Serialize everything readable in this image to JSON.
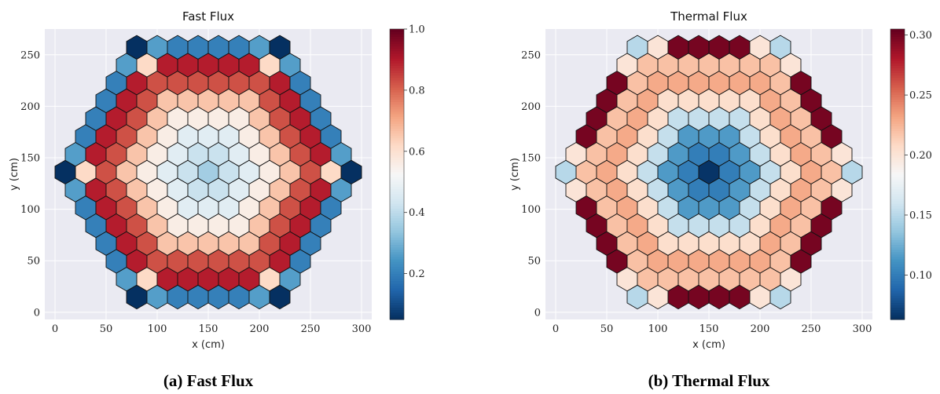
{
  "colors": {
    "colormap": [
      "#053061",
      "#2166ac",
      "#4393c3",
      "#92c5de",
      "#d1e5f0",
      "#f7f7f7",
      "#fddbc7",
      "#f4a582",
      "#d6604d",
      "#b2182b",
      "#67001f"
    ],
    "plot_background": "#eaeaf2",
    "hex_edge": "#111111"
  },
  "chart_data": [
    {
      "type": "heatmap",
      "subtype": "hexagonal-lattice",
      "title": "Fast Flux",
      "caption": "(a) Fast Flux",
      "xlabel": "x (cm)",
      "ylabel": "y (cm)",
      "xlim": [
        -10,
        310
      ],
      "ylim": [
        -7,
        275
      ],
      "xticks": [
        0,
        50,
        100,
        150,
        200,
        250,
        300
      ],
      "yticks": [
        0,
        50,
        100,
        150,
        200,
        250
      ],
      "xtick_labels": [
        "0",
        "50",
        "100",
        "150",
        "200",
        "250",
        "300"
      ],
      "ytick_labels": [
        "0",
        "50",
        "100",
        "150",
        "200",
        "250"
      ],
      "grid": true,
      "colorbar": {
        "min": 0.05,
        "max": 1.0,
        "ticks": [
          0.2,
          0.4,
          0.6,
          0.8,
          1.0
        ],
        "tick_labels": [
          "0.2",
          "0.4",
          "0.6",
          "0.8",
          "1.0"
        ]
      },
      "lattice": {
        "rings": 8,
        "pitch_cm": 20,
        "center_cm": [
          150,
          136
        ]
      },
      "ring_values": [
        0.36,
        0.42,
        0.47,
        0.56,
        0.66,
        0.83,
        0.9,
        0.2
      ],
      "corner_values": [
        0.05,
        0.05,
        0.05,
        0.05,
        0.05,
        0.05
      ],
      "near_corner_values": [
        0.26,
        0.62,
        0.72,
        0.6
      ],
      "legend_position": "right"
    },
    {
      "type": "heatmap",
      "subtype": "hexagonal-lattice",
      "title": "Thermal Flux",
      "caption": "(b) Thermal Flux",
      "xlabel": "x (cm)",
      "ylabel": "y (cm)",
      "xlim": [
        -10,
        310
      ],
      "ylim": [
        -7,
        275
      ],
      "xticks": [
        0,
        50,
        100,
        150,
        200,
        250,
        300
      ],
      "yticks": [
        0,
        50,
        100,
        150,
        200,
        250
      ],
      "xtick_labels": [
        "0",
        "50",
        "100",
        "150",
        "200",
        "250",
        "300"
      ],
      "ytick_labels": [
        "0",
        "50",
        "100",
        "150",
        "200",
        "250"
      ],
      "grid": true,
      "colorbar": {
        "min": 0.063,
        "max": 0.305,
        "ticks": [
          0.1,
          0.15,
          0.2,
          0.25,
          0.3
        ],
        "tick_labels": [
          "0.10",
          "0.15",
          "0.20",
          "0.25",
          "0.30"
        ]
      },
      "lattice": {
        "rings": 8,
        "pitch_cm": 20,
        "center_cm": [
          150,
          136
        ]
      },
      "ring_values": [
        0.065,
        0.1,
        0.115,
        0.155,
        0.205,
        0.23,
        0.22,
        0.3
      ],
      "corner_values": [
        0.15,
        0.15,
        0.15,
        0.15,
        0.15,
        0.15
      ],
      "near_corner_values": [
        0.2,
        0.22,
        0.235,
        0.26
      ],
      "legend_position": "right"
    }
  ]
}
